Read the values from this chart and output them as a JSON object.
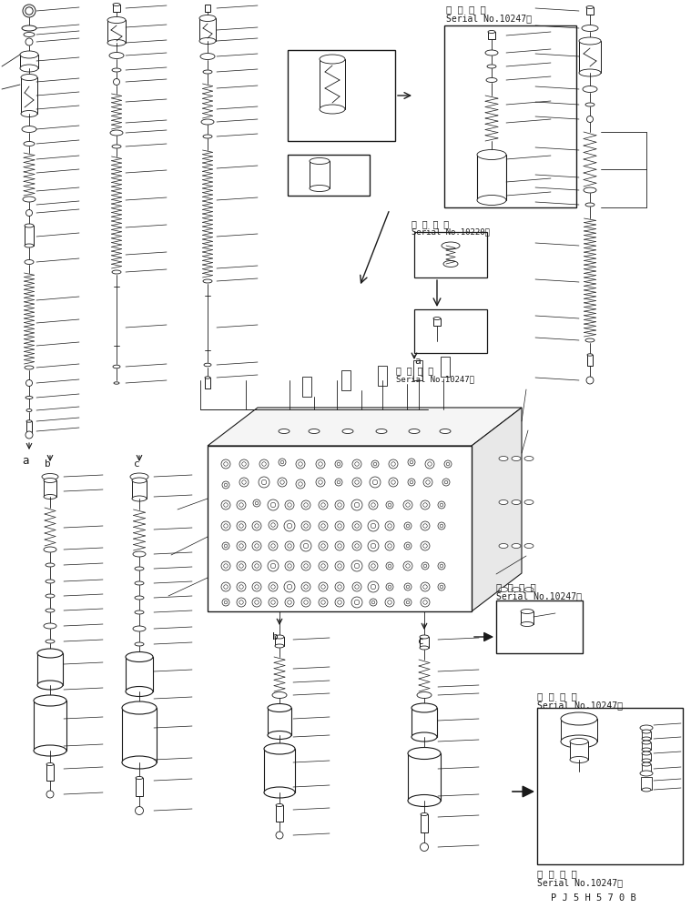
{
  "title": "PJ5H570B",
  "background_color": "#ffffff",
  "line_color": "#1a1a1a",
  "text_color": "#1a1a1a",
  "fig_width": 7.59,
  "fig_height": 9.98,
  "dpi": 100,
  "serial_10247": "適 用 号 機\nSerial No.10247～",
  "serial_10220": "適 用 号 機\nSerial No.10220～",
  "label_a": "a",
  "label_b": "b",
  "label_c": "c",
  "part_num": "P J 5 H 5 7 0 B"
}
